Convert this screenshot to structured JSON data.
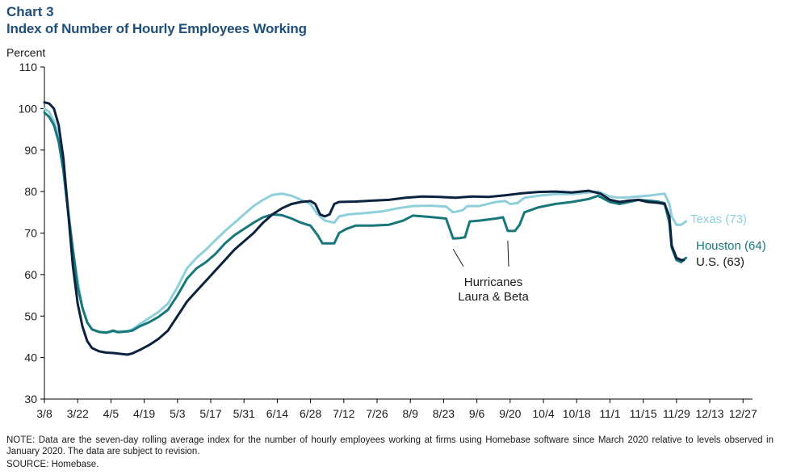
{
  "header": {
    "chart_number": "Chart 3",
    "title": "Index of Number of Hourly Employees Working"
  },
  "footer": {
    "note": "NOTE: Data are the seven-day rolling average index for the number of hourly employees working at firms using Homebase software since March 2020 relative to levels observed in January 2020. The data are subject to revision.",
    "source": "SOURCE: Homebase."
  },
  "chart_data": {
    "type": "line",
    "title": "Index of Number of Hourly Employees Working",
    "xlabel": "",
    "ylabel": "Percent",
    "ylim": [
      30,
      110
    ],
    "yticks": [
      30,
      40,
      50,
      60,
      70,
      80,
      90,
      100,
      110
    ],
    "xlim": [
      "2020-03-08",
      "2020-12-31"
    ],
    "xticks": [
      "2020-03-08",
      "2020-03-22",
      "2020-04-05",
      "2020-04-19",
      "2020-05-03",
      "2020-05-17",
      "2020-05-31",
      "2020-06-14",
      "2020-06-28",
      "2020-07-12",
      "2020-07-26",
      "2020-08-09",
      "2020-08-23",
      "2020-09-06",
      "2020-09-20",
      "2020-10-04",
      "2020-10-18",
      "2020-11-01",
      "2020-11-15",
      "2020-11-29",
      "2020-12-13",
      "2020-12-27"
    ],
    "xtick_labels": [
      "3/8",
      "3/22",
      "4/5",
      "4/19",
      "5/3",
      "5/17",
      "5/31",
      "6/14",
      "6/28",
      "7/12",
      "7/26",
      "8/9",
      "8/23",
      "9/6",
      "9/20",
      "10/4",
      "10/18",
      "11/1",
      "11/15",
      "11/29",
      "12/13",
      "12/27"
    ],
    "grid": false,
    "legend": "direct labels at line ends",
    "annotations": [
      {
        "line1": "Hurricanes",
        "line2": "Laura & Beta",
        "points": [
          [
            "2020-08-27",
            68.5
          ],
          [
            "2020-09-19",
            70.5
          ]
        ]
      }
    ],
    "series": [
      {
        "name": "U.S.",
        "label": "U.S. (63)",
        "color": "#0c2340",
        "points": [
          [
            "2020-03-08",
            101.5
          ],
          [
            "2020-03-10",
            101.2
          ],
          [
            "2020-03-12",
            100
          ],
          [
            "2020-03-14",
            96
          ],
          [
            "2020-03-16",
            88
          ],
          [
            "2020-03-18",
            75
          ],
          [
            "2020-03-20",
            62
          ],
          [
            "2020-03-22",
            53
          ],
          [
            "2020-03-24",
            47.5
          ],
          [
            "2020-03-26",
            44
          ],
          [
            "2020-03-28",
            42.3
          ],
          [
            "2020-03-31",
            41.5
          ],
          [
            "2020-04-03",
            41.2
          ],
          [
            "2020-04-06",
            41.1
          ],
          [
            "2020-04-09",
            40.9
          ],
          [
            "2020-04-12",
            40.7
          ],
          [
            "2020-04-14",
            41
          ],
          [
            "2020-04-17",
            41.8
          ],
          [
            "2020-04-21",
            43
          ],
          [
            "2020-04-25",
            44.5
          ],
          [
            "2020-04-29",
            46.5
          ],
          [
            "2020-05-03",
            50
          ],
          [
            "2020-05-07",
            53.5
          ],
          [
            "2020-05-11",
            56
          ],
          [
            "2020-05-15",
            58.5
          ],
          [
            "2020-05-19",
            61
          ],
          [
            "2020-05-23",
            63.5
          ],
          [
            "2020-05-27",
            66
          ],
          [
            "2020-05-31",
            68
          ],
          [
            "2020-06-04",
            70
          ],
          [
            "2020-06-08",
            72.5
          ],
          [
            "2020-06-12",
            74.5
          ],
          [
            "2020-06-16",
            76
          ],
          [
            "2020-06-20",
            77
          ],
          [
            "2020-06-24",
            77.5
          ],
          [
            "2020-06-28",
            77.7
          ],
          [
            "2020-06-30",
            77
          ],
          [
            "2020-07-02",
            74.5
          ],
          [
            "2020-07-04",
            74
          ],
          [
            "2020-07-06",
            74.5
          ],
          [
            "2020-07-08",
            77
          ],
          [
            "2020-07-10",
            77.5
          ],
          [
            "2020-07-17",
            77.6
          ],
          [
            "2020-07-24",
            77.8
          ],
          [
            "2020-07-31",
            78
          ],
          [
            "2020-08-07",
            78.5
          ],
          [
            "2020-08-14",
            78.8
          ],
          [
            "2020-08-21",
            78.7
          ],
          [
            "2020-08-28",
            78.5
          ],
          [
            "2020-09-04",
            78.8
          ],
          [
            "2020-09-11",
            78.7
          ],
          [
            "2020-09-18",
            79.1
          ],
          [
            "2020-09-25",
            79.6
          ],
          [
            "2020-10-02",
            79.9
          ],
          [
            "2020-10-09",
            80
          ],
          [
            "2020-10-16",
            79.8
          ],
          [
            "2020-10-23",
            80.2
          ],
          [
            "2020-10-28",
            79.5
          ],
          [
            "2020-11-01",
            78
          ],
          [
            "2020-11-05",
            77.5
          ],
          [
            "2020-11-09",
            77.8
          ],
          [
            "2020-11-13",
            78
          ],
          [
            "2020-11-17",
            77.5
          ],
          [
            "2020-11-21",
            77.3
          ],
          [
            "2020-11-24",
            77
          ],
          [
            "2020-11-26",
            74
          ],
          [
            "2020-11-27",
            67
          ],
          [
            "2020-11-29",
            64
          ],
          [
            "2020-12-01",
            63.5
          ],
          [
            "2020-12-02",
            63.5
          ]
        ]
      },
      {
        "name": "Houston",
        "label": "Houston (64)",
        "color": "#17777a",
        "points": [
          [
            "2020-03-08",
            99
          ],
          [
            "2020-03-10",
            98
          ],
          [
            "2020-03-12",
            96
          ],
          [
            "2020-03-14",
            92
          ],
          [
            "2020-03-16",
            85
          ],
          [
            "2020-03-18",
            75
          ],
          [
            "2020-03-20",
            66
          ],
          [
            "2020-03-22",
            57
          ],
          [
            "2020-03-24",
            52
          ],
          [
            "2020-03-26",
            48.5
          ],
          [
            "2020-03-28",
            46.8
          ],
          [
            "2020-03-31",
            46.2
          ],
          [
            "2020-04-03",
            46
          ],
          [
            "2020-04-06",
            46.5
          ],
          [
            "2020-04-08",
            46.1
          ],
          [
            "2020-04-12",
            46.3
          ],
          [
            "2020-04-14",
            46.5
          ],
          [
            "2020-04-17",
            47.5
          ],
          [
            "2020-04-21",
            48.5
          ],
          [
            "2020-04-25",
            49.8
          ],
          [
            "2020-04-29",
            51.5
          ],
          [
            "2020-05-03",
            55
          ],
          [
            "2020-05-07",
            59
          ],
          [
            "2020-05-11",
            61.5
          ],
          [
            "2020-05-15",
            63
          ],
          [
            "2020-05-19",
            65
          ],
          [
            "2020-05-23",
            67.5
          ],
          [
            "2020-05-27",
            69.5
          ],
          [
            "2020-05-31",
            71
          ],
          [
            "2020-06-04",
            72.5
          ],
          [
            "2020-06-08",
            73.8
          ],
          [
            "2020-06-12",
            74.5
          ],
          [
            "2020-06-16",
            74.3
          ],
          [
            "2020-06-20",
            73.5
          ],
          [
            "2020-06-24",
            72.5
          ],
          [
            "2020-06-28",
            71.8
          ],
          [
            "2020-07-01",
            69.5
          ],
          [
            "2020-07-03",
            67.5
          ],
          [
            "2020-07-08",
            67.5
          ],
          [
            "2020-07-10",
            70
          ],
          [
            "2020-07-13",
            71
          ],
          [
            "2020-07-17",
            71.8
          ],
          [
            "2020-07-24",
            71.8
          ],
          [
            "2020-07-31",
            72
          ],
          [
            "2020-08-06",
            73
          ],
          [
            "2020-08-10",
            74.2
          ],
          [
            "2020-08-17",
            73.9
          ],
          [
            "2020-08-24",
            73.5
          ],
          [
            "2020-08-27",
            68.7
          ],
          [
            "2020-08-30",
            68.8
          ],
          [
            "2020-09-01",
            69
          ],
          [
            "2020-09-03",
            72.8
          ],
          [
            "2020-09-07",
            73
          ],
          [
            "2020-09-14",
            73.5
          ],
          [
            "2020-09-17",
            73.8
          ],
          [
            "2020-09-19",
            70.5
          ],
          [
            "2020-09-22",
            70.5
          ],
          [
            "2020-09-24",
            72
          ],
          [
            "2020-09-26",
            75
          ],
          [
            "2020-10-02",
            76.2
          ],
          [
            "2020-10-09",
            77
          ],
          [
            "2020-10-16",
            77.5
          ],
          [
            "2020-10-23",
            78.2
          ],
          [
            "2020-10-27",
            79
          ],
          [
            "2020-11-01",
            77.5
          ],
          [
            "2020-11-05",
            77
          ],
          [
            "2020-11-09",
            77.5
          ],
          [
            "2020-11-13",
            78
          ],
          [
            "2020-11-17",
            77.8
          ],
          [
            "2020-11-21",
            77.6
          ],
          [
            "2020-11-24",
            77.2
          ],
          [
            "2020-11-26",
            72.5
          ],
          [
            "2020-11-27",
            66.5
          ],
          [
            "2020-11-29",
            63.5
          ],
          [
            "2020-12-01",
            63
          ],
          [
            "2020-12-03",
            64
          ]
        ]
      },
      {
        "name": "Texas",
        "label": "Texas (73)",
        "color": "#8ecfdb",
        "points": [
          [
            "2020-03-08",
            100
          ],
          [
            "2020-03-10",
            99.2
          ],
          [
            "2020-03-12",
            97
          ],
          [
            "2020-03-14",
            93.5
          ],
          [
            "2020-03-16",
            86.5
          ],
          [
            "2020-03-18",
            76
          ],
          [
            "2020-03-20",
            66
          ],
          [
            "2020-03-22",
            58.5
          ],
          [
            "2020-03-24",
            52
          ],
          [
            "2020-03-26",
            48.5
          ],
          [
            "2020-03-28",
            46.8
          ],
          [
            "2020-03-31",
            46.1
          ],
          [
            "2020-04-03",
            46
          ],
          [
            "2020-04-06",
            46.3
          ],
          [
            "2020-04-09",
            46.3
          ],
          [
            "2020-04-12",
            46.4
          ],
          [
            "2020-04-14",
            46.8
          ],
          [
            "2020-04-17",
            48
          ],
          [
            "2020-04-21",
            49.5
          ],
          [
            "2020-04-25",
            51
          ],
          [
            "2020-04-29",
            53
          ],
          [
            "2020-05-03",
            57
          ],
          [
            "2020-05-07",
            61.5
          ],
          [
            "2020-05-11",
            64
          ],
          [
            "2020-05-15",
            66
          ],
          [
            "2020-05-19",
            68.3
          ],
          [
            "2020-05-23",
            70.5
          ],
          [
            "2020-05-27",
            72.5
          ],
          [
            "2020-05-31",
            74.5
          ],
          [
            "2020-06-04",
            76.5
          ],
          [
            "2020-06-08",
            78
          ],
          [
            "2020-06-12",
            79.2
          ],
          [
            "2020-06-16",
            79.5
          ],
          [
            "2020-06-20",
            79
          ],
          [
            "2020-06-24",
            78
          ],
          [
            "2020-06-28",
            77
          ],
          [
            "2020-07-01",
            74.5
          ],
          [
            "2020-07-04",
            73
          ],
          [
            "2020-07-08",
            72.5
          ],
          [
            "2020-07-10",
            74
          ],
          [
            "2020-07-14",
            74.5
          ],
          [
            "2020-07-21",
            74.8
          ],
          [
            "2020-07-28",
            75.2
          ],
          [
            "2020-08-04",
            76
          ],
          [
            "2020-08-10",
            76.5
          ],
          [
            "2020-08-17",
            76.6
          ],
          [
            "2020-08-24",
            76.4
          ],
          [
            "2020-08-27",
            75
          ],
          [
            "2020-08-31",
            75.5
          ],
          [
            "2020-09-02",
            76.5
          ],
          [
            "2020-09-07",
            76.5
          ],
          [
            "2020-09-14",
            77.5
          ],
          [
            "2020-09-18",
            77.7
          ],
          [
            "2020-09-20",
            77
          ],
          [
            "2020-09-23",
            77.2
          ],
          [
            "2020-09-26",
            78.5
          ],
          [
            "2020-10-02",
            79
          ],
          [
            "2020-10-09",
            79.4
          ],
          [
            "2020-10-16",
            79.4
          ],
          [
            "2020-10-23",
            79.8
          ],
          [
            "2020-10-27",
            80
          ],
          [
            "2020-11-01",
            78.8
          ],
          [
            "2020-11-05",
            78.5
          ],
          [
            "2020-11-09",
            78.6
          ],
          [
            "2020-11-13",
            78.8
          ],
          [
            "2020-11-17",
            79
          ],
          [
            "2020-11-21",
            79.3
          ],
          [
            "2020-11-24",
            79.5
          ],
          [
            "2020-11-26",
            77
          ],
          [
            "2020-11-27",
            74
          ],
          [
            "2020-11-29",
            72
          ],
          [
            "2020-12-01",
            72
          ],
          [
            "2020-12-03",
            72.8
          ]
        ]
      }
    ]
  }
}
